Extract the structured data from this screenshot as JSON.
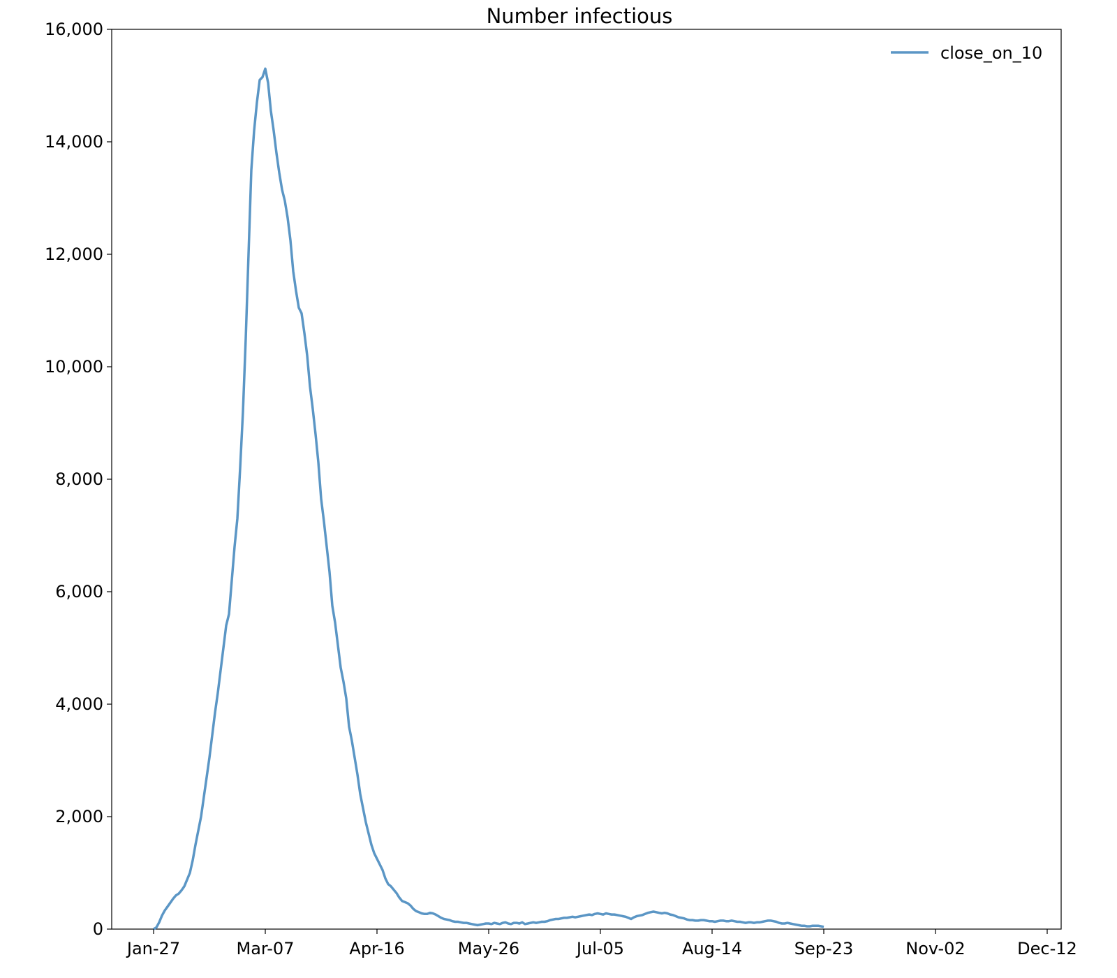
{
  "chart_data": {
    "type": "line",
    "title": "Number infectious",
    "xlabel": "",
    "ylabel": "",
    "x_start": "Jan-27",
    "x_ticks": [
      "Jan-27",
      "Mar-07",
      "Apr-16",
      "May-26",
      "Jul-05",
      "Aug-14",
      "Sep-23",
      "Nov-02",
      "Dec-12"
    ],
    "x_tick_days": [
      0,
      40,
      80,
      120,
      160,
      200,
      240,
      280,
      320
    ],
    "xlim": [
      -15,
      325
    ],
    "y_ticks": [
      "0",
      "2,000",
      "4,000",
      "6,000",
      "8,000",
      "10,000",
      "12,000",
      "14,000",
      "16,000"
    ],
    "y_tick_values": [
      0,
      2000,
      4000,
      6000,
      8000,
      10000,
      12000,
      14000,
      16000
    ],
    "ylim": [
      0,
      16000
    ],
    "grid": false,
    "legend_position": "top-right",
    "series": [
      {
        "name": "close_on_10",
        "color": "#5b96c5",
        "points": [
          [
            0,
            0
          ],
          [
            1,
            30
          ],
          [
            2,
            120
          ],
          [
            3,
            240
          ],
          [
            4,
            330
          ],
          [
            5,
            400
          ],
          [
            6,
            470
          ],
          [
            7,
            540
          ],
          [
            8,
            600
          ],
          [
            9,
            630
          ],
          [
            10,
            690
          ],
          [
            11,
            760
          ],
          [
            12,
            880
          ],
          [
            13,
            1000
          ],
          [
            14,
            1220
          ],
          [
            15,
            1500
          ],
          [
            16,
            1750
          ],
          [
            17,
            2000
          ],
          [
            18,
            2350
          ],
          [
            19,
            2700
          ],
          [
            20,
            3050
          ],
          [
            21,
            3450
          ],
          [
            22,
            3850
          ],
          [
            23,
            4200
          ],
          [
            24,
            4600
          ],
          [
            25,
            5000
          ],
          [
            26,
            5400
          ],
          [
            27,
            5600
          ],
          [
            28,
            6200
          ],
          [
            29,
            6800
          ],
          [
            30,
            7300
          ],
          [
            31,
            8200
          ],
          [
            32,
            9200
          ],
          [
            33,
            10500
          ],
          [
            34,
            12000
          ],
          [
            35,
            13500
          ],
          [
            36,
            14200
          ],
          [
            37,
            14700
          ],
          [
            38,
            15100
          ],
          [
            39,
            15150
          ],
          [
            40,
            15300
          ],
          [
            41,
            15050
          ],
          [
            42,
            14550
          ],
          [
            43,
            14200
          ],
          [
            44,
            13800
          ],
          [
            45,
            13450
          ],
          [
            46,
            13150
          ],
          [
            47,
            12950
          ],
          [
            48,
            12650
          ],
          [
            49,
            12250
          ],
          [
            50,
            11700
          ],
          [
            51,
            11350
          ],
          [
            52,
            11050
          ],
          [
            53,
            10950
          ],
          [
            54,
            10600
          ],
          [
            55,
            10200
          ],
          [
            56,
            9650
          ],
          [
            57,
            9250
          ],
          [
            58,
            8800
          ],
          [
            59,
            8300
          ],
          [
            60,
            7650
          ],
          [
            61,
            7250
          ],
          [
            62,
            6800
          ],
          [
            63,
            6350
          ],
          [
            64,
            5750
          ],
          [
            65,
            5450
          ],
          [
            66,
            5050
          ],
          [
            67,
            4650
          ],
          [
            68,
            4400
          ],
          [
            69,
            4100
          ],
          [
            70,
            3600
          ],
          [
            71,
            3350
          ],
          [
            72,
            3050
          ],
          [
            73,
            2750
          ],
          [
            74,
            2400
          ],
          [
            75,
            2150
          ],
          [
            76,
            1900
          ],
          [
            77,
            1700
          ],
          [
            78,
            1500
          ],
          [
            79,
            1350
          ],
          [
            80,
            1250
          ],
          [
            81,
            1150
          ],
          [
            82,
            1050
          ],
          [
            83,
            900
          ],
          [
            84,
            800
          ],
          [
            85,
            760
          ],
          [
            86,
            700
          ],
          [
            87,
            640
          ],
          [
            88,
            560
          ],
          [
            89,
            500
          ],
          [
            90,
            480
          ],
          [
            91,
            460
          ],
          [
            92,
            420
          ],
          [
            93,
            360
          ],
          [
            94,
            320
          ],
          [
            95,
            300
          ],
          [
            96,
            280
          ],
          [
            97,
            270
          ],
          [
            98,
            270
          ],
          [
            99,
            290
          ],
          [
            100,
            280
          ],
          [
            101,
            260
          ],
          [
            102,
            230
          ],
          [
            103,
            200
          ],
          [
            104,
            180
          ],
          [
            105,
            170
          ],
          [
            106,
            160
          ],
          [
            107,
            140
          ],
          [
            108,
            130
          ],
          [
            109,
            130
          ],
          [
            110,
            120
          ],
          [
            111,
            110
          ],
          [
            112,
            110
          ],
          [
            113,
            100
          ],
          [
            114,
            90
          ],
          [
            115,
            80
          ],
          [
            116,
            70
          ],
          [
            117,
            80
          ],
          [
            118,
            90
          ],
          [
            119,
            100
          ],
          [
            120,
            100
          ],
          [
            121,
            90
          ],
          [
            122,
            110
          ],
          [
            123,
            100
          ],
          [
            124,
            90
          ],
          [
            125,
            110
          ],
          [
            126,
            120
          ],
          [
            127,
            100
          ],
          [
            128,
            90
          ],
          [
            129,
            110
          ],
          [
            130,
            110
          ],
          [
            131,
            100
          ],
          [
            132,
            120
          ],
          [
            133,
            90
          ],
          [
            134,
            100
          ],
          [
            135,
            110
          ],
          [
            136,
            120
          ],
          [
            137,
            110
          ],
          [
            138,
            120
          ],
          [
            139,
            130
          ],
          [
            140,
            130
          ],
          [
            141,
            140
          ],
          [
            142,
            160
          ],
          [
            143,
            170
          ],
          [
            144,
            180
          ],
          [
            145,
            180
          ],
          [
            146,
            190
          ],
          [
            147,
            200
          ],
          [
            148,
            200
          ],
          [
            149,
            210
          ],
          [
            150,
            220
          ],
          [
            151,
            210
          ],
          [
            152,
            220
          ],
          [
            153,
            230
          ],
          [
            154,
            240
          ],
          [
            155,
            250
          ],
          [
            156,
            260
          ],
          [
            157,
            250
          ],
          [
            158,
            270
          ],
          [
            159,
            280
          ],
          [
            160,
            270
          ],
          [
            161,
            260
          ],
          [
            162,
            280
          ],
          [
            163,
            270
          ],
          [
            164,
            260
          ],
          [
            165,
            260
          ],
          [
            166,
            250
          ],
          [
            167,
            240
          ],
          [
            168,
            230
          ],
          [
            169,
            220
          ],
          [
            170,
            200
          ],
          [
            171,
            180
          ],
          [
            172,
            210
          ],
          [
            173,
            230
          ],
          [
            174,
            240
          ],
          [
            175,
            250
          ],
          [
            176,
            270
          ],
          [
            177,
            290
          ],
          [
            178,
            300
          ],
          [
            179,
            310
          ],
          [
            180,
            300
          ],
          [
            181,
            290
          ],
          [
            182,
            280
          ],
          [
            183,
            290
          ],
          [
            184,
            280
          ],
          [
            185,
            260
          ],
          [
            186,
            250
          ],
          [
            187,
            230
          ],
          [
            188,
            210
          ],
          [
            189,
            200
          ],
          [
            190,
            190
          ],
          [
            191,
            170
          ],
          [
            192,
            160
          ],
          [
            193,
            160
          ],
          [
            194,
            150
          ],
          [
            195,
            150
          ],
          [
            196,
            160
          ],
          [
            197,
            160
          ],
          [
            198,
            150
          ],
          [
            199,
            140
          ],
          [
            200,
            140
          ],
          [
            201,
            130
          ],
          [
            202,
            140
          ],
          [
            203,
            150
          ],
          [
            204,
            150
          ],
          [
            205,
            140
          ],
          [
            206,
            140
          ],
          [
            207,
            150
          ],
          [
            208,
            140
          ],
          [
            209,
            130
          ],
          [
            210,
            130
          ],
          [
            211,
            120
          ],
          [
            212,
            110
          ],
          [
            213,
            120
          ],
          [
            214,
            120
          ],
          [
            215,
            110
          ],
          [
            216,
            120
          ],
          [
            217,
            120
          ],
          [
            218,
            130
          ],
          [
            219,
            140
          ],
          [
            220,
            150
          ],
          [
            221,
            150
          ],
          [
            222,
            140
          ],
          [
            223,
            130
          ],
          [
            224,
            110
          ],
          [
            225,
            100
          ],
          [
            226,
            100
          ],
          [
            227,
            110
          ],
          [
            228,
            100
          ],
          [
            229,
            90
          ],
          [
            230,
            80
          ],
          [
            231,
            70
          ],
          [
            232,
            60
          ],
          [
            233,
            60
          ],
          [
            234,
            50
          ],
          [
            235,
            50
          ],
          [
            236,
            60
          ],
          [
            237,
            60
          ],
          [
            238,
            60
          ],
          [
            239,
            50
          ],
          [
            240,
            40
          ]
        ]
      }
    ]
  }
}
